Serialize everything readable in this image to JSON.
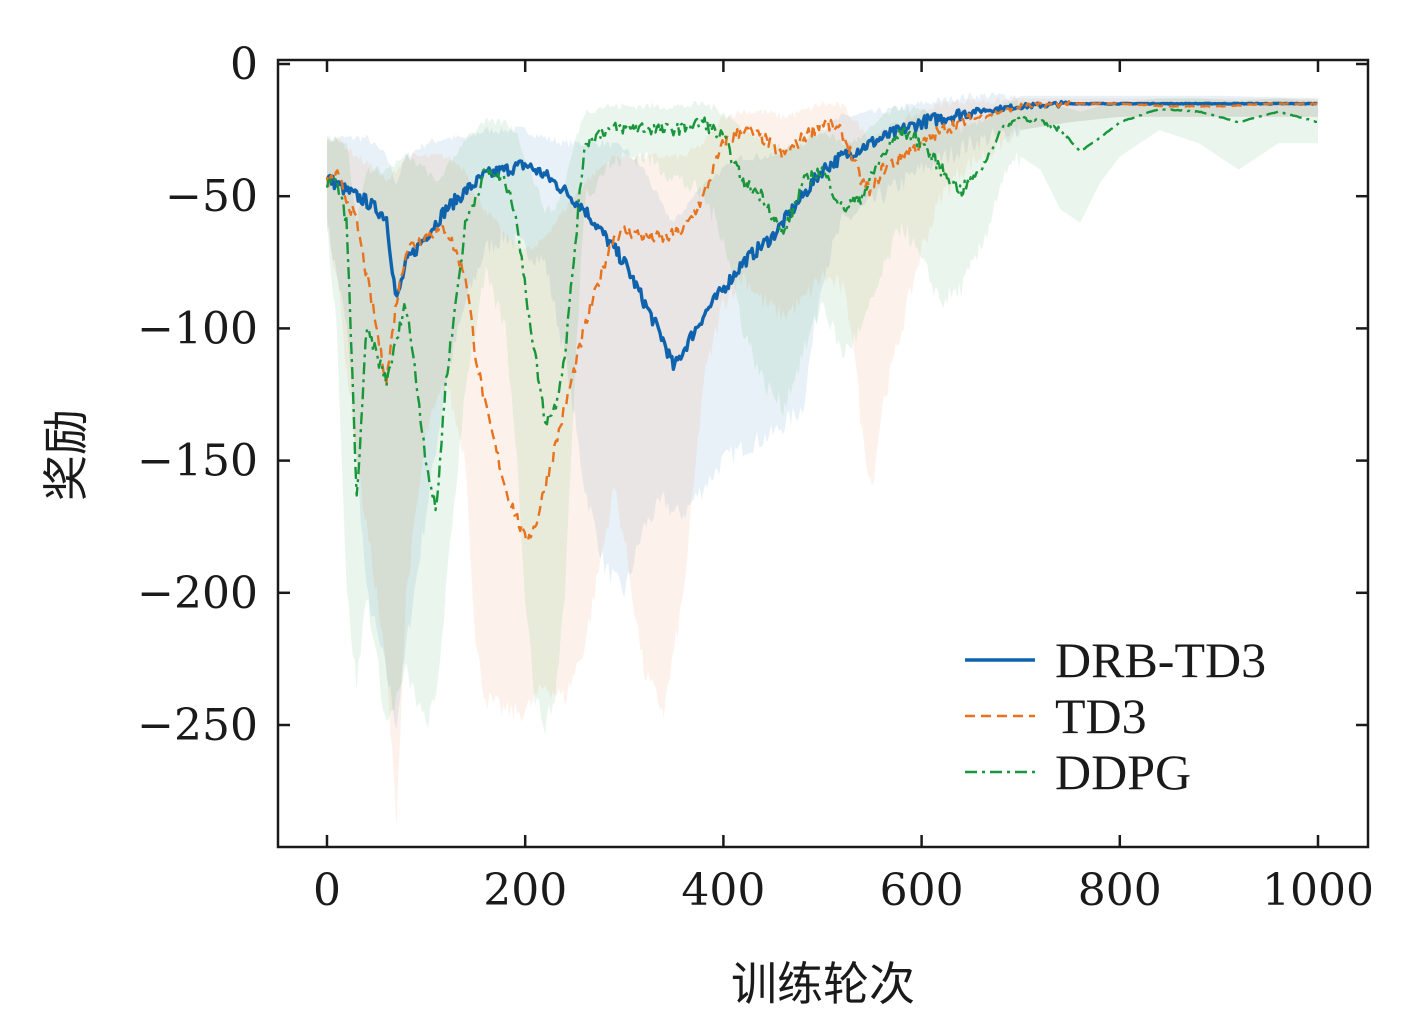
{
  "chart_data": {
    "type": "line",
    "title": "",
    "xlabel": "训练轮次",
    "ylabel": "奖励",
    "xlim": [
      -50,
      1050
    ],
    "ylim": [
      -295,
      2
    ],
    "xticks": [
      0,
      200,
      400,
      600,
      800,
      1000
    ],
    "xtick_labels": [
      "0",
      "200",
      "400",
      "600",
      "800",
      "1000"
    ],
    "yticks": [
      0,
      -50,
      -100,
      -150,
      -200,
      -250
    ],
    "ytick_labels": [
      "0",
      "−50",
      "−100",
      "−150",
      "−200",
      "−250"
    ],
    "grid": false,
    "legend_position": "bottom-right",
    "series": [
      {
        "name": "DRB-TD3",
        "color": "#0f63ad",
        "dash": "solid",
        "x": [
          0,
          20,
          40,
          60,
          70,
          80,
          100,
          120,
          140,
          160,
          180,
          200,
          220,
          240,
          260,
          280,
          300,
          320,
          340,
          350,
          360,
          380,
          400,
          420,
          450,
          480,
          500,
          520,
          560,
          600,
          650,
          700,
          750,
          800,
          900,
          1000
        ],
        "y": [
          -43,
          -48,
          -52,
          -58,
          -90,
          -75,
          -65,
          -55,
          -48,
          -42,
          -40,
          -38,
          -42,
          -48,
          -55,
          -65,
          -75,
          -90,
          -105,
          -115,
          -108,
          -95,
          -85,
          -75,
          -65,
          -50,
          -40,
          -35,
          -28,
          -22,
          -18,
          -16,
          -15,
          -15,
          -15,
          -15
        ],
        "band_upper": [
          -28,
          -28,
          -28,
          -35,
          -45,
          -35,
          -30,
          -28,
          -28,
          -25,
          -25,
          -25,
          -28,
          -30,
          -30,
          -30,
          -32,
          -40,
          -55,
          -60,
          -55,
          -45,
          -40,
          -35,
          -35,
          -30,
          -25,
          -20,
          -18,
          -15,
          -12,
          -12,
          -12,
          -12,
          -12,
          -13
        ],
        "band_lower": [
          -60,
          -100,
          -200,
          -230,
          -250,
          -220,
          -170,
          -120,
          -90,
          -70,
          -65,
          -70,
          -75,
          -110,
          -160,
          -190,
          -200,
          -175,
          -165,
          -170,
          -170,
          -160,
          -150,
          -145,
          -140,
          -130,
          -80,
          -60,
          -50,
          -40,
          -30,
          -25,
          -22,
          -20,
          -20,
          -20
        ]
      },
      {
        "name": "TD3",
        "color": "#e8731e",
        "dash": "dashed",
        "x": [
          0,
          10,
          30,
          50,
          60,
          70,
          80,
          100,
          120,
          140,
          150,
          160,
          180,
          200,
          210,
          220,
          240,
          260,
          280,
          290,
          300,
          320,
          340,
          360,
          380,
          400,
          420,
          440,
          460,
          480,
          500,
          520,
          530,
          540,
          550,
          560,
          580,
          600,
          620,
          640,
          660,
          680,
          700,
          750,
          800,
          850,
          900,
          950,
          1000
        ],
        "y": [
          -45,
          -42,
          -60,
          -100,
          -120,
          -90,
          -70,
          -65,
          -62,
          -80,
          -110,
          -130,
          -160,
          -180,
          -175,
          -160,
          -130,
          -100,
          -75,
          -65,
          -63,
          -65,
          -66,
          -63,
          -50,
          -30,
          -25,
          -28,
          -35,
          -28,
          -22,
          -26,
          -35,
          -45,
          -48,
          -40,
          -35,
          -30,
          -25,
          -22,
          -20,
          -18,
          -16,
          -15,
          -15,
          -16,
          -16,
          -15,
          -15
        ],
        "band_upper": [
          -28,
          -28,
          -35,
          -40,
          -45,
          -40,
          -35,
          -35,
          -35,
          -40,
          -50,
          -55,
          -65,
          -70,
          -70,
          -65,
          -55,
          -45,
          -38,
          -35,
          -35,
          -35,
          -35,
          -35,
          -30,
          -20,
          -18,
          -18,
          -20,
          -18,
          -15,
          -16,
          -20,
          -25,
          -28,
          -25,
          -22,
          -18,
          -15,
          -14,
          -14,
          -14,
          -13,
          -13,
          -13,
          -13,
          -13,
          -13,
          -13
        ],
        "band_lower": [
          -60,
          -80,
          -150,
          -200,
          -230,
          -285,
          -200,
          -140,
          -120,
          -150,
          -220,
          -240,
          -245,
          -245,
          -240,
          -235,
          -240,
          -220,
          -180,
          -160,
          -180,
          -230,
          -245,
          -200,
          -120,
          -90,
          -80,
          -90,
          -95,
          -90,
          -80,
          -85,
          -100,
          -140,
          -160,
          -130,
          -100,
          -70,
          -50,
          -40,
          -35,
          -30,
          -25,
          -22,
          -20,
          -20,
          -20,
          -20,
          -20
        ]
      },
      {
        "name": "DDPG",
        "color": "#17963a",
        "dash": "dashdot",
        "x": [
          0,
          10,
          20,
          30,
          40,
          60,
          80,
          100,
          110,
          120,
          140,
          160,
          180,
          190,
          200,
          210,
          220,
          230,
          240,
          250,
          260,
          280,
          300,
          320,
          340,
          360,
          380,
          400,
          420,
          440,
          460,
          480,
          500,
          520,
          540,
          560,
          580,
          600,
          620,
          640,
          660,
          680,
          700,
          720,
          740,
          760,
          780,
          800,
          840,
          880,
          920,
          960,
          1000
        ],
        "y": [
          -45,
          -45,
          -60,
          -165,
          -100,
          -120,
          -90,
          -150,
          -170,
          -120,
          -60,
          -40,
          -45,
          -55,
          -85,
          -110,
          -135,
          -130,
          -110,
          -70,
          -30,
          -25,
          -24,
          -24,
          -25,
          -24,
          -22,
          -28,
          -45,
          -50,
          -65,
          -45,
          -40,
          -55,
          -50,
          -35,
          -25,
          -30,
          -40,
          -48,
          -40,
          -25,
          -20,
          -22,
          -25,
          -33,
          -28,
          -22,
          -17,
          -18,
          -22,
          -18,
          -22
        ],
        "band_upper": [
          -28,
          -28,
          -30,
          -60,
          -40,
          -40,
          -35,
          -40,
          -45,
          -40,
          -28,
          -22,
          -22,
          -25,
          -35,
          -45,
          -55,
          -55,
          -45,
          -30,
          -18,
          -16,
          -16,
          -16,
          -16,
          -16,
          -15,
          -18,
          -25,
          -28,
          -32,
          -28,
          -25,
          -30,
          -28,
          -20,
          -16,
          -18,
          -22,
          -25,
          -22,
          -16,
          -14,
          -15,
          -16,
          -18,
          -16,
          -15,
          -13,
          -13,
          -14,
          -13,
          -14
        ],
        "band_lower": [
          -60,
          -100,
          -200,
          -235,
          -200,
          -250,
          -230,
          -250,
          -240,
          -200,
          -120,
          -80,
          -100,
          -140,
          -200,
          -240,
          -250,
          -240,
          -200,
          -120,
          -50,
          -40,
          -35,
          -35,
          -40,
          -45,
          -50,
          -65,
          -100,
          -120,
          -130,
          -110,
          -90,
          -110,
          -100,
          -80,
          -60,
          -75,
          -90,
          -85,
          -70,
          -45,
          -35,
          -40,
          -55,
          -60,
          -45,
          -35,
          -25,
          -30,
          -40,
          -30,
          -30
        ]
      }
    ]
  }
}
